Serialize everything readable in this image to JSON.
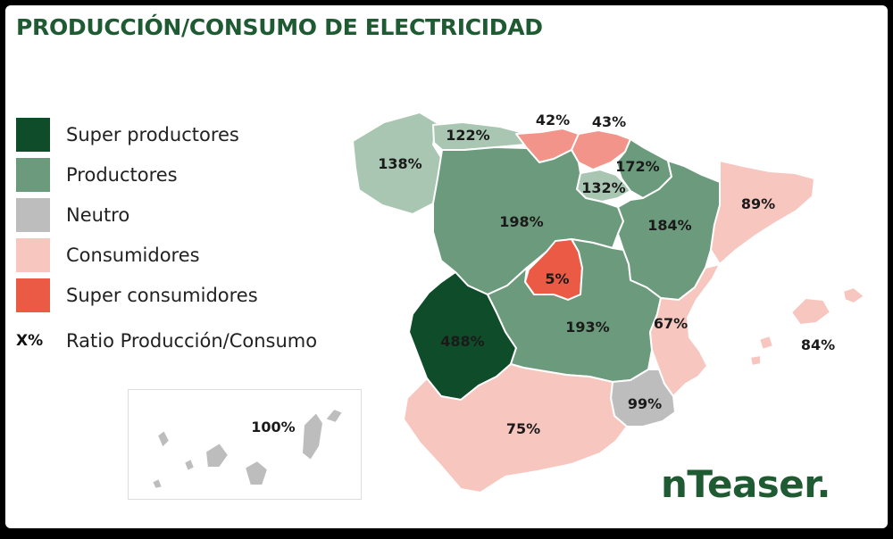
{
  "title": "PRODUCCIÓN/CONSUMO DE ELECTRICIDAD",
  "legend": {
    "items": [
      {
        "label": "Super productores",
        "color": "#0f4d2a"
      },
      {
        "label": "Productores",
        "color": "#6c9a7c"
      },
      {
        "label": "Neutro",
        "color": "#bdbdbd"
      },
      {
        "label": "Consumidores",
        "color": "#f7c6bf"
      },
      {
        "label": "Super consumidores",
        "color": "#ea5a44"
      }
    ],
    "ratio_symbol": "X%",
    "ratio_label": "Ratio Producción/Consumo"
  },
  "regions": {
    "galicia": {
      "value": "138%",
      "category": "Productores",
      "color": "#a9c6b2"
    },
    "asturias": {
      "value": "122%",
      "category": "Productores",
      "color": "#a9c6b2"
    },
    "cantabria": {
      "value": "42%",
      "category": "Consumidores",
      "color": "#f2948a"
    },
    "pais_vasco": {
      "value": "43%",
      "category": "Consumidores",
      "color": "#f2948a"
    },
    "navarra": {
      "value": "172%",
      "category": "Productores",
      "color": "#6c9a7c"
    },
    "la_rioja": {
      "value": "132%",
      "category": "Productores",
      "color": "#a9c6b2"
    },
    "aragon": {
      "value": "184%",
      "category": "Productores",
      "color": "#6c9a7c"
    },
    "cataluna": {
      "value": "89%",
      "category": "Consumidores",
      "color": "#f7c6bf"
    },
    "castilla_leon": {
      "value": "198%",
      "category": "Productores",
      "color": "#6c9a7c"
    },
    "madrid": {
      "value": "5%",
      "category": "Super consumidores",
      "color": "#ea5a44"
    },
    "castilla_la_mancha": {
      "value": "193%",
      "category": "Productores",
      "color": "#6c9a7c"
    },
    "extremadura": {
      "value": "488%",
      "category": "Super productores",
      "color": "#0f4d2a"
    },
    "valencia": {
      "value": "67%",
      "category": "Consumidores",
      "color": "#f7c6bf"
    },
    "baleares": {
      "value": "84%",
      "category": "Consumidores",
      "color": "#f7c6bf"
    },
    "murcia": {
      "value": "99%",
      "category": "Neutro",
      "color": "#bdbdbd"
    },
    "andalucia": {
      "value": "75%",
      "category": "Consumidores",
      "color": "#f7c6bf"
    },
    "canarias": {
      "value": "100%",
      "category": "Neutro",
      "color": "#bdbdbd"
    }
  },
  "brand": "nTeaser."
}
